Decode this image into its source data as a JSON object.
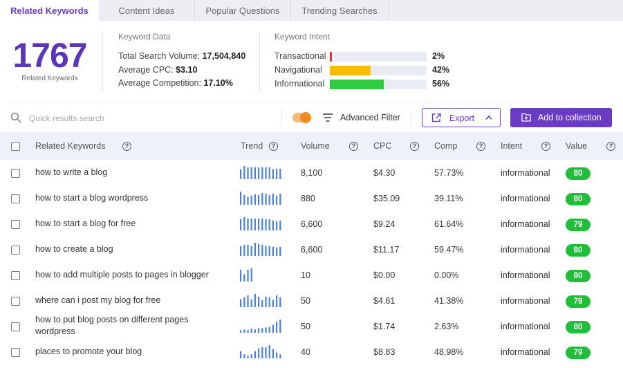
{
  "tabs": [
    {
      "label": "Related Keywords",
      "active": true
    },
    {
      "label": "Content Ideas",
      "active": false
    },
    {
      "label": "Popular Questions",
      "active": false
    },
    {
      "label": "Trending Searches",
      "active": false
    }
  ],
  "summary": {
    "count": "1767",
    "count_caption": "Related Keywords",
    "keyword_data": {
      "title": "Keyword Data",
      "total_volume_label": "Total Search Volume:",
      "total_volume_value": "17,504,840",
      "avg_cpc_label": "Average CPC:",
      "avg_cpc_value": "$3.10",
      "avg_comp_label": "Average Competition:",
      "avg_comp_value": "17.10%"
    },
    "keyword_intent": {
      "title": "Keyword Intent",
      "items": [
        {
          "label": "Transactional",
          "pct": "2%",
          "fraction": 0.02,
          "color": "#e53935"
        },
        {
          "label": "Navigational",
          "pct": "42%",
          "fraction": 0.42,
          "color": "#fbbc05"
        },
        {
          "label": "Informational",
          "pct": "56%",
          "fraction": 0.56,
          "color": "#2ecc40"
        }
      ]
    }
  },
  "toolbar": {
    "search_placeholder": "Quick results search",
    "filter_label": "Advanced Filter",
    "export_label": "Export",
    "collection_label": "Add to collection"
  },
  "table": {
    "headers": {
      "keyword": "Related Keywords",
      "trend": "Trend",
      "volume": "Volume",
      "cpc": "CPC",
      "comp": "Comp",
      "intent": "Intent",
      "value": "Value"
    },
    "help_glyph": "?",
    "rows": [
      {
        "keyword": "how to write a blog",
        "volume": "8,100",
        "cpc": "$4.30",
        "comp": "57.73%",
        "intent": "informational",
        "value": "80",
        "trend": [
          0.75,
          1,
          0.9,
          0.9,
          0.9,
          0.9,
          0.9,
          0.9,
          0.9,
          0.75,
          0.8,
          0.8
        ]
      },
      {
        "keyword": "how to start a blog wordpress",
        "volume": "880",
        "cpc": "$35.09",
        "comp": "39.11%",
        "intent": "informational",
        "value": "80",
        "trend": [
          1,
          0.75,
          0.6,
          0.7,
          0.8,
          0.75,
          0.9,
          0.85,
          0.75,
          0.85,
          0.7,
          0.85
        ]
      },
      {
        "keyword": "how to start a blog for free",
        "volume": "6,600",
        "cpc": "$9.24",
        "comp": "61.64%",
        "intent": "informational",
        "value": "79",
        "trend": [
          0.85,
          1,
          0.9,
          0.9,
          0.9,
          0.9,
          0.9,
          0.85,
          0.85,
          0.75,
          0.7,
          0.75
        ]
      },
      {
        "keyword": "how to create a blog",
        "volume": "6,600",
        "cpc": "$11.17",
        "comp": "59.47%",
        "intent": "informational",
        "value": "80",
        "trend": [
          0.75,
          0.85,
          0.85,
          0.75,
          1,
          0.9,
          0.85,
          0.75,
          0.75,
          0.7,
          0.65,
          0.7
        ]
      },
      {
        "keyword": "how to add multiple posts to pages in blogger",
        "volume": "10",
        "cpc": "$0.00",
        "comp": "0.00%",
        "intent": "informational",
        "value": "80",
        "trend": [
          0.9,
          0.55,
          0.9,
          1
        ]
      },
      {
        "keyword": "where can i post my blog for free",
        "volume": "50",
        "cpc": "$4.61",
        "comp": "41.38%",
        "intent": "informational",
        "value": "79",
        "trend": [
          0.6,
          0.75,
          0.9,
          0.6,
          1,
          0.8,
          0.55,
          0.8,
          0.75,
          0.55,
          0.9,
          0.75
        ]
      },
      {
        "keyword": "how to put blog posts on different pages wordpress",
        "volume": "50",
        "cpc": "$1.74",
        "comp": "2.63%",
        "intent": "informational",
        "value": "80",
        "trend": [
          0.2,
          0.25,
          0.2,
          0.3,
          0.25,
          0.35,
          0.35,
          0.4,
          0.45,
          0.6,
          0.85,
          1
        ]
      },
      {
        "keyword": "places to promote your blog",
        "volume": "40",
        "cpc": "$8.83",
        "comp": "48.98%",
        "intent": "informational",
        "value": "79",
        "trend": [
          0.55,
          0.3,
          0.2,
          0.3,
          0.55,
          0.75,
          0.85,
          0.85,
          1,
          0.7,
          0.45,
          0.3
        ]
      }
    ]
  },
  "colors": {
    "accent": "#6a3cc5",
    "trend_bar": "#4a7fe0",
    "badge_green": "#1fbf3a",
    "toggle": "#f28c1f"
  }
}
